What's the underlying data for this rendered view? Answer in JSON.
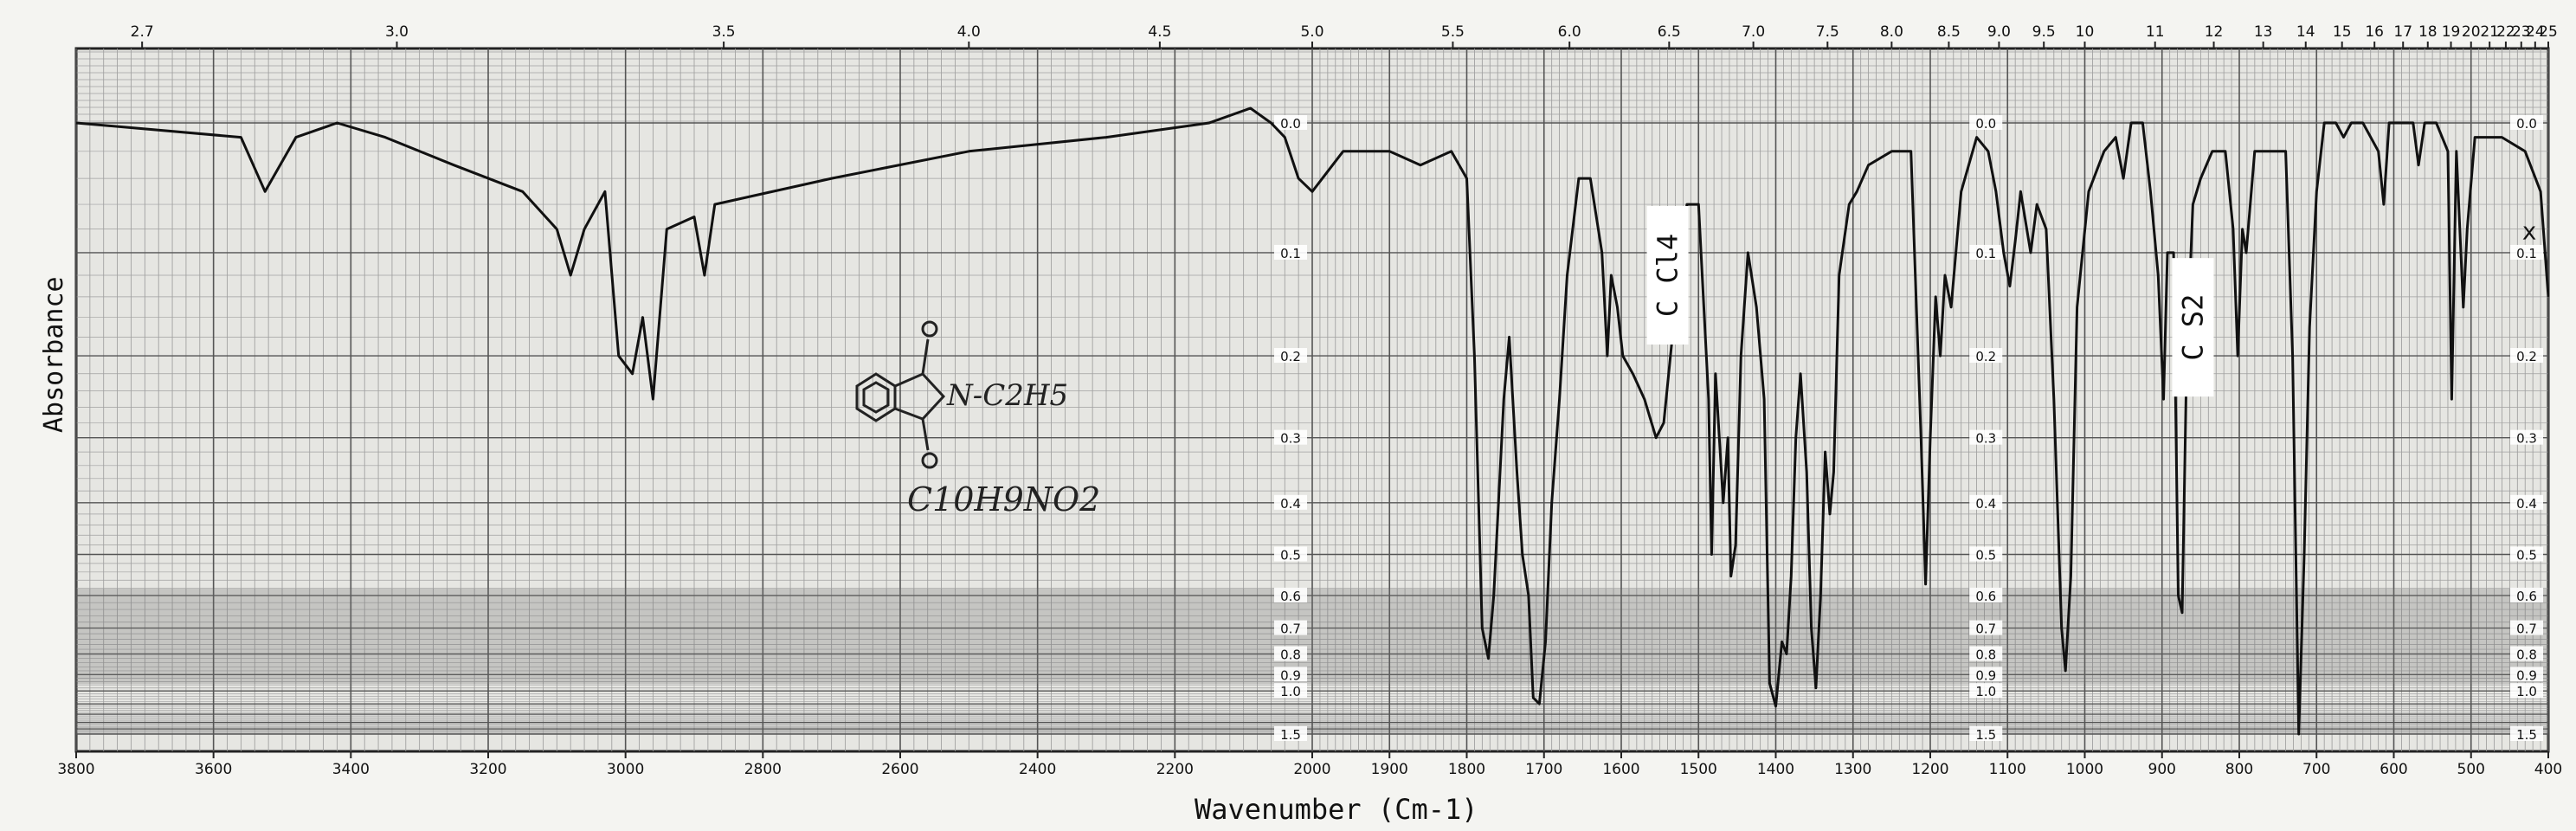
{
  "chart_data": {
    "type": "line",
    "title": "",
    "xlabel": "Wavenumber (Cm-1)",
    "ylabel": "Absorbance",
    "x_reversed": true,
    "xlim": [
      3800,
      400
    ],
    "ylim": [
      0,
      1.5
    ],
    "grid": true,
    "bottom_ticks": [
      {
        "v": 3800,
        "label": "3800"
      },
      {
        "v": 3600,
        "label": "3600"
      },
      {
        "v": 3400,
        "label": "3400"
      },
      {
        "v": 3200,
        "label": "3200"
      },
      {
        "v": 3000,
        "label": "3000"
      },
      {
        "v": 2800,
        "label": "2800"
      },
      {
        "v": 2600,
        "label": "2600"
      },
      {
        "v": 2400,
        "label": "2400"
      },
      {
        "v": 2200,
        "label": "2200"
      },
      {
        "v": 2000,
        "label": "2000"
      },
      {
        "v": 1900,
        "label": "1900"
      },
      {
        "v": 1800,
        "label": "1800"
      },
      {
        "v": 1700,
        "label": "1700"
      },
      {
        "v": 1600,
        "label": "1600"
      },
      {
        "v": 1500,
        "label": "1500"
      },
      {
        "v": 1400,
        "label": "1400"
      },
      {
        "v": 1300,
        "label": "1300"
      },
      {
        "v": 1200,
        "label": "1200"
      },
      {
        "v": 1100,
        "label": "1100"
      },
      {
        "v": 1000,
        "label": "1000"
      },
      {
        "v": 900,
        "label": "900"
      },
      {
        "v": 800,
        "label": "800"
      },
      {
        "v": 700,
        "label": "700"
      },
      {
        "v": 600,
        "label": "600"
      },
      {
        "v": 500,
        "label": "500"
      },
      {
        "v": 400,
        "label": "400"
      }
    ],
    "top_ticks": [
      {
        "v": 3704,
        "label": "2.7"
      },
      {
        "v": 3333,
        "label": "3.0"
      },
      {
        "v": 2857,
        "label": "3.5"
      },
      {
        "v": 2500,
        "label": "4.0"
      },
      {
        "v": 2222,
        "label": "4.5"
      },
      {
        "v": 2000,
        "label": "5.0"
      },
      {
        "v": 1818,
        "label": "5.5"
      },
      {
        "v": 1667,
        "label": "6.0"
      },
      {
        "v": 1538,
        "label": "6.5"
      },
      {
        "v": 1429,
        "label": "7.0"
      },
      {
        "v": 1333,
        "label": "7.5"
      },
      {
        "v": 1250,
        "label": "8.0"
      },
      {
        "v": 1176,
        "label": "8.5"
      },
      {
        "v": 1111,
        "label": "9.0"
      },
      {
        "v": 1053,
        "label": "9.5"
      },
      {
        "v": 1000,
        "label": "10"
      },
      {
        "v": 909,
        "label": "11"
      },
      {
        "v": 833,
        "label": "12"
      },
      {
        "v": 769,
        "label": "13"
      },
      {
        "v": 714,
        "label": "14"
      },
      {
        "v": 667,
        "label": "15"
      },
      {
        "v": 625,
        "label": "16"
      },
      {
        "v": 588,
        "label": "17"
      },
      {
        "v": 556,
        "label": "18"
      },
      {
        "v": 526,
        "label": "19"
      },
      {
        "v": 500,
        "label": "20"
      },
      {
        "v": 476,
        "label": "21"
      },
      {
        "v": 455,
        "label": "22"
      },
      {
        "v": 435,
        "label": "23"
      },
      {
        "v": 417,
        "label": "24"
      },
      {
        "v": 400,
        "label": "25"
      }
    ],
    "y_ticks": [
      {
        "v": 0.0,
        "label": "0.0"
      },
      {
        "v": 0.1,
        "label": "0.1"
      },
      {
        "v": 0.2,
        "label": "0.2"
      },
      {
        "v": 0.3,
        "label": "0.3"
      },
      {
        "v": 0.4,
        "label": "0.4"
      },
      {
        "v": 0.5,
        "label": "0.5"
      },
      {
        "v": 0.6,
        "label": "0.6"
      },
      {
        "v": 0.7,
        "label": "0.7"
      },
      {
        "v": 0.8,
        "label": "0.8"
      },
      {
        "v": 0.9,
        "label": "0.9"
      },
      {
        "v": 1.0,
        "label": "1.0"
      },
      {
        "v": 1.5,
        "label": "1.5"
      }
    ],
    "y_tick_columns_cm1": [
      2000,
      1100,
      400
    ],
    "annotations": [
      {
        "text": "C Cl4",
        "x": 1540,
        "y": 0.12,
        "rotated": true
      },
      {
        "text": "C S2",
        "x": 860,
        "y": 0.17,
        "rotated": true
      },
      {
        "text": "x",
        "x": 400,
        "y": 0.08,
        "rotated": false
      }
    ],
    "structure_labels": {
      "formula": "C10H9NO2",
      "substituent": "N-C2H5"
    },
    "series": [
      {
        "color": "#111111",
        "points": [
          [
            3800,
            0.0
          ],
          [
            3560,
            0.01
          ],
          [
            3525,
            0.05
          ],
          [
            3480,
            0.01
          ],
          [
            3420,
            0.0
          ],
          [
            3350,
            0.01
          ],
          [
            3250,
            0.03
          ],
          [
            3150,
            0.05
          ],
          [
            3100,
            0.08
          ],
          [
            3080,
            0.12
          ],
          [
            3060,
            0.08
          ],
          [
            3030,
            0.05
          ],
          [
            3010,
            0.2
          ],
          [
            2990,
            0.22
          ],
          [
            2975,
            0.16
          ],
          [
            2960,
            0.25
          ],
          [
            2940,
            0.08
          ],
          [
            2900,
            0.07
          ],
          [
            2885,
            0.12
          ],
          [
            2870,
            0.06
          ],
          [
            2700,
            0.04
          ],
          [
            2500,
            0.02
          ],
          [
            2300,
            0.01
          ],
          [
            2150,
            0.0
          ],
          [
            2090,
            -0.01
          ],
          [
            2060,
            0.0
          ],
          [
            2040,
            0.01
          ],
          [
            2020,
            0.04
          ],
          [
            2000,
            0.05
          ],
          [
            1960,
            0.02
          ],
          [
            1900,
            0.02
          ],
          [
            1860,
            0.03
          ],
          [
            1820,
            0.02
          ],
          [
            1800,
            0.04
          ],
          [
            1790,
            0.2
          ],
          [
            1780,
            0.7
          ],
          [
            1772,
            0.82
          ],
          [
            1765,
            0.6
          ],
          [
            1752,
            0.25
          ],
          [
            1745,
            0.18
          ],
          [
            1735,
            0.35
          ],
          [
            1728,
            0.5
          ],
          [
            1720,
            0.6
          ],
          [
            1714,
            1.05
          ],
          [
            1706,
            1.1
          ],
          [
            1698,
            0.75
          ],
          [
            1690,
            0.4
          ],
          [
            1680,
            0.25
          ],
          [
            1670,
            0.12
          ],
          [
            1655,
            0.04
          ],
          [
            1640,
            0.04
          ],
          [
            1625,
            0.1
          ],
          [
            1618,
            0.2
          ],
          [
            1613,
            0.12
          ],
          [
            1605,
            0.15
          ],
          [
            1598,
            0.2
          ],
          [
            1585,
            0.22
          ],
          [
            1570,
            0.25
          ],
          [
            1555,
            0.3
          ],
          [
            1545,
            0.28
          ],
          [
            1530,
            0.15
          ],
          [
            1515,
            0.06
          ],
          [
            1500,
            0.06
          ],
          [
            1487,
            0.25
          ],
          [
            1483,
            0.5
          ],
          [
            1478,
            0.22
          ],
          [
            1473,
            0.3
          ],
          [
            1468,
            0.4
          ],
          [
            1462,
            0.3
          ],
          [
            1458,
            0.55
          ],
          [
            1452,
            0.48
          ],
          [
            1445,
            0.2
          ],
          [
            1436,
            0.1
          ],
          [
            1425,
            0.15
          ],
          [
            1415,
            0.25
          ],
          [
            1408,
            0.95
          ],
          [
            1400,
            1.12
          ],
          [
            1392,
            0.75
          ],
          [
            1386,
            0.8
          ],
          [
            1380,
            0.55
          ],
          [
            1374,
            0.3
          ],
          [
            1368,
            0.22
          ],
          [
            1360,
            0.35
          ],
          [
            1354,
            0.7
          ],
          [
            1348,
            0.98
          ],
          [
            1342,
            0.6
          ],
          [
            1336,
            0.32
          ],
          [
            1330,
            0.42
          ],
          [
            1325,
            0.35
          ],
          [
            1318,
            0.12
          ],
          [
            1305,
            0.06
          ],
          [
            1295,
            0.05
          ],
          [
            1280,
            0.03
          ],
          [
            1250,
            0.02
          ],
          [
            1225,
            0.02
          ],
          [
            1212,
            0.3
          ],
          [
            1206,
            0.57
          ],
          [
            1200,
            0.3
          ],
          [
            1193,
            0.14
          ],
          [
            1187,
            0.2
          ],
          [
            1181,
            0.12
          ],
          [
            1173,
            0.15
          ],
          [
            1160,
            0.05
          ],
          [
            1140,
            0.01
          ],
          [
            1125,
            0.02
          ],
          [
            1115,
            0.05
          ],
          [
            1105,
            0.1
          ],
          [
            1097,
            0.13
          ],
          [
            1090,
            0.09
          ],
          [
            1083,
            0.05
          ],
          [
            1070,
            0.1
          ],
          [
            1062,
            0.06
          ],
          [
            1050,
            0.08
          ],
          [
            1040,
            0.25
          ],
          [
            1030,
            0.7
          ],
          [
            1025,
            0.88
          ],
          [
            1018,
            0.55
          ],
          [
            1010,
            0.15
          ],
          [
            995,
            0.05
          ],
          [
            975,
            0.02
          ],
          [
            960,
            0.01
          ],
          [
            950,
            0.04
          ],
          [
            940,
            0.0
          ],
          [
            925,
            0.0
          ],
          [
            915,
            0.05
          ],
          [
            905,
            0.12
          ],
          [
            898,
            0.25
          ],
          [
            893,
            0.1
          ],
          [
            885,
            0.1
          ],
          [
            879,
            0.6
          ],
          [
            874,
            0.65
          ],
          [
            868,
            0.2
          ],
          [
            860,
            0.06
          ],
          [
            850,
            0.04
          ],
          [
            835,
            0.02
          ],
          [
            818,
            0.02
          ],
          [
            808,
            0.08
          ],
          [
            802,
            0.2
          ],
          [
            796,
            0.08
          ],
          [
            791,
            0.1
          ],
          [
            780,
            0.02
          ],
          [
            760,
            0.02
          ],
          [
            740,
            0.02
          ],
          [
            731,
            0.2
          ],
          [
            723,
            1.5
          ],
          [
            716,
            0.5
          ],
          [
            709,
            0.17
          ],
          [
            700,
            0.05
          ],
          [
            690,
            0.0
          ],
          [
            675,
            0.0
          ],
          [
            665,
            0.01
          ],
          [
            655,
            0.0
          ],
          [
            640,
            0.0
          ],
          [
            620,
            0.02
          ],
          [
            613,
            0.06
          ],
          [
            606,
            0.0
          ],
          [
            590,
            0.0
          ],
          [
            575,
            0.0
          ],
          [
            568,
            0.03
          ],
          [
            560,
            0.0
          ],
          [
            545,
            0.0
          ],
          [
            530,
            0.02
          ],
          [
            525,
            0.25
          ],
          [
            519,
            0.02
          ],
          [
            510,
            0.15
          ],
          [
            505,
            0.08
          ],
          [
            495,
            0.01
          ],
          [
            460,
            0.01
          ],
          [
            430,
            0.02
          ],
          [
            410,
            0.05
          ],
          [
            400,
            0.14
          ]
        ]
      }
    ]
  }
}
